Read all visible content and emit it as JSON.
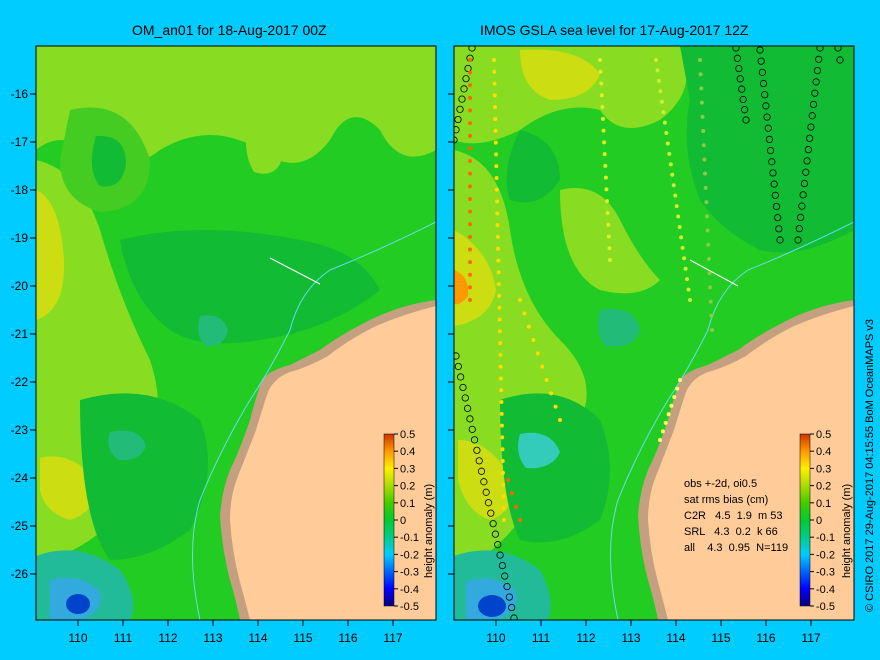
{
  "panels": [
    {
      "title": "OM_an01 for 18-Aug-2017 00Z"
    },
    {
      "title": "IMOS GSLA sea level  for 17-Aug-2017 12Z"
    }
  ],
  "x_ticks": [
    "110",
    "111",
    "112",
    "113",
    "114",
    "115",
    "116",
    "117"
  ],
  "y_ticks": [
    "-16",
    "-17",
    "-18",
    "-19",
    "-20",
    "-21",
    "-22",
    "-23",
    "-24",
    "-25",
    "-26"
  ],
  "colorbar": {
    "label": "height anomaly (m)",
    "ticks": [
      "0.5",
      "0.4",
      "0.3",
      "0.2",
      "0.1",
      "0",
      "-0.1",
      "-0.2",
      "-0.3",
      "-0.4",
      "-0.5"
    ],
    "range": [
      -0.5,
      0.5
    ]
  },
  "stats": {
    "line1": "obs +-2d, oi0.5",
    "line2": "sat rms bias (cm)",
    "line3": "C2R   4.5  1.9  m 53",
    "line4": "SRL   4.3  0.2  k 66",
    "line5": "all    4.3  0.95  N=119"
  },
  "credit": "© CSIRO 2017   29-Aug-2017 04:15:55 BoM OceanMAPS v3",
  "colors": {
    "background": "#00ccff",
    "land": "#ffcc99",
    "coast": "#c4a080",
    "sea_base": "#22cc22"
  }
}
